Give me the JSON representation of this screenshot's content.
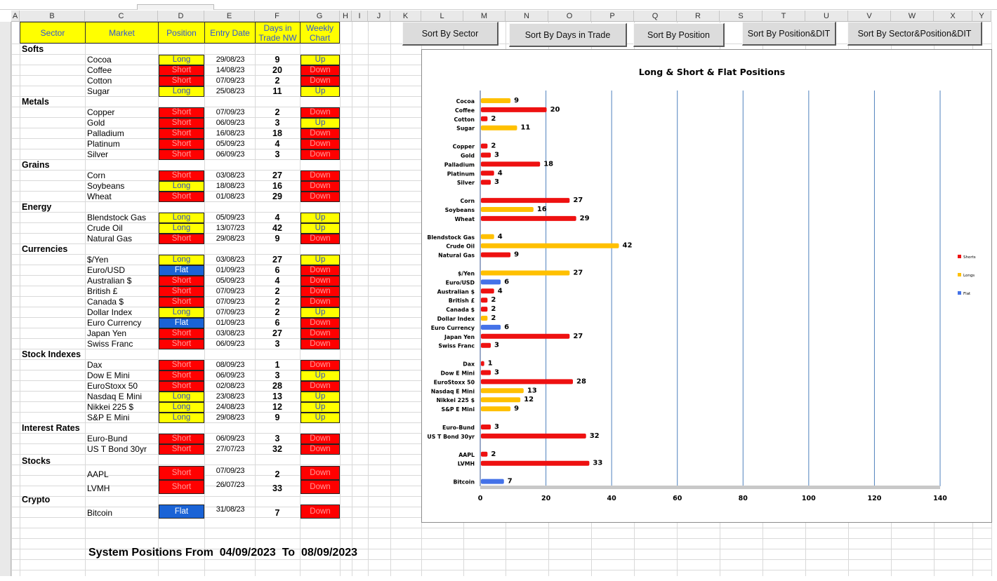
{
  "columns": [
    {
      "letter": "A"
    },
    {
      "letter": "B"
    },
    {
      "letter": "C"
    },
    {
      "letter": "D"
    },
    {
      "letter": "E"
    },
    {
      "letter": "F"
    },
    {
      "letter": "G"
    },
    {
      "letter": "H"
    },
    {
      "letter": "I"
    },
    {
      "letter": "J"
    },
    {
      "letter": "K"
    },
    {
      "letter": "L"
    },
    {
      "letter": "M"
    },
    {
      "letter": "N"
    },
    {
      "letter": "O"
    },
    {
      "letter": "P"
    },
    {
      "letter": "Q"
    },
    {
      "letter": "R"
    },
    {
      "letter": "S"
    },
    {
      "letter": "T"
    },
    {
      "letter": "U"
    },
    {
      "letter": "V"
    },
    {
      "letter": "W"
    },
    {
      "letter": "X"
    },
    {
      "letter": "Y"
    }
  ],
  "headers": {
    "sector": "Sector",
    "market": "Market",
    "position": "Position",
    "entry_date": "Entry Date",
    "days_line1": "Days in",
    "days_line2": "Trade NW",
    "weekly_line1": "Weekly",
    "weekly_line2": "Chart"
  },
  "sectors": [
    {
      "name": "Softs",
      "rows": [
        {
          "market": "Cocoa",
          "position": "Long",
          "date": "29/08/23",
          "days": "9",
          "weekly": "Up"
        },
        {
          "market": "Coffee",
          "position": "Short",
          "date": "14/08/23",
          "days": "20",
          "weekly": "Down"
        },
        {
          "market": "Cotton",
          "position": "Short",
          "date": "07/09/23",
          "days": "2",
          "weekly": "Down"
        },
        {
          "market": "Sugar",
          "position": "Long",
          "date": "25/08/23",
          "days": "11",
          "weekly": "Up"
        }
      ]
    },
    {
      "name": "Metals",
      "rows": [
        {
          "market": "Copper",
          "position": "Short",
          "date": "07/09/23",
          "days": "2",
          "weekly": "Down"
        },
        {
          "market": "Gold",
          "position": "Short",
          "date": "06/09/23",
          "days": "3",
          "weekly": "Up"
        },
        {
          "market": "Palladium",
          "position": "Short",
          "date": "16/08/23",
          "days": "18",
          "weekly": "Down"
        },
        {
          "market": "Platinum",
          "position": "Short",
          "date": "05/09/23",
          "days": "4",
          "weekly": "Down"
        },
        {
          "market": "Silver",
          "position": "Short",
          "date": "06/09/23",
          "days": "3",
          "weekly": "Down"
        }
      ]
    },
    {
      "name": "Grains",
      "rows": [
        {
          "market": "Corn",
          "position": "Short",
          "date": "03/08/23",
          "days": "27",
          "weekly": "Down"
        },
        {
          "market": "Soybeans",
          "position": "Long",
          "date": "18/08/23",
          "days": "16",
          "weekly": "Down"
        },
        {
          "market": "Wheat",
          "position": "Short",
          "date": "01/08/23",
          "days": "29",
          "weekly": "Down"
        }
      ]
    },
    {
      "name": "Energy",
      "rows": [
        {
          "market": "Blendstock Gas",
          "position": "Long",
          "date": "05/09/23",
          "days": "4",
          "weekly": "Up"
        },
        {
          "market": "Crude Oil",
          "position": "Long",
          "date": "13/07/23",
          "days": "42",
          "weekly": "Up"
        },
        {
          "market": "Natural Gas",
          "position": "Short",
          "date": "29/08/23",
          "days": "9",
          "weekly": "Down"
        }
      ]
    },
    {
      "name": "Currencies",
      "rows": [
        {
          "market": "$/Yen",
          "position": "Long",
          "date": "03/08/23",
          "days": "27",
          "weekly": "Up"
        },
        {
          "market": "Euro/USD",
          "position": "Flat",
          "date": "01/09/23",
          "days": "6",
          "weekly": "Down"
        },
        {
          "market": "Australian $",
          "position": "Short",
          "date": "05/09/23",
          "days": "4",
          "weekly": "Down"
        },
        {
          "market": "British £",
          "position": "Short",
          "date": "07/09/23",
          "days": "2",
          "weekly": "Down"
        },
        {
          "market": "Canada $",
          "position": "Short",
          "date": "07/09/23",
          "days": "2",
          "weekly": "Down"
        },
        {
          "market": "Dollar Index",
          "position": "Long",
          "date": "07/09/23",
          "days": "2",
          "weekly": "Up"
        },
        {
          "market": "Euro Currency",
          "position": "Flat",
          "date": "01/09/23",
          "days": "6",
          "weekly": "Down"
        },
        {
          "market": "Japan Yen",
          "position": "Short",
          "date": "03/08/23",
          "days": "27",
          "weekly": "Down"
        },
        {
          "market": "Swiss Franc",
          "position": "Short",
          "date": "06/09/23",
          "days": "3",
          "weekly": "Down"
        }
      ]
    },
    {
      "name": "Stock Indexes",
      "rows": [
        {
          "market": "Dax",
          "position": "Short",
          "date": "08/09/23",
          "days": "1",
          "weekly": "Down"
        },
        {
          "market": "Dow E Mini",
          "position": "Short",
          "date": "06/09/23",
          "days": "3",
          "weekly": "Up"
        },
        {
          "market": "EuroStoxx 50",
          "position": "Short",
          "date": "02/08/23",
          "days": "28",
          "weekly": "Down"
        },
        {
          "market": "Nasdaq E Mini",
          "position": "Long",
          "date": "23/08/23",
          "days": "13",
          "weekly": "Up"
        },
        {
          "market": "Nikkei 225 $",
          "position": "Long",
          "date": "24/08/23",
          "days": "12",
          "weekly": "Up"
        },
        {
          "market": "S&P E Mini",
          "position": "Long",
          "date": "29/08/23",
          "days": "9",
          "weekly": "Up"
        }
      ]
    },
    {
      "name": "Interest Rates",
      "rows": [
        {
          "market": "Euro-Bund",
          "position": "Short",
          "date": "06/09/23",
          "days": "3",
          "weekly": "Down"
        },
        {
          "market": "US T Bond 30yr",
          "position": "Short",
          "date": "27/07/23",
          "days": "32",
          "weekly": "Down"
        }
      ]
    },
    {
      "name": "Stocks",
      "rows": [
        {
          "market": "AAPL",
          "position": "Short",
          "date": "07/09/23",
          "days": "2",
          "weekly": "Down"
        },
        {
          "market": "LVMH",
          "position": "Short",
          "date": "26/07/23",
          "days": "33",
          "weekly": "Down"
        }
      ]
    },
    {
      "name": "Crypto",
      "rows": [
        {
          "market": "Bitcoin",
          "position": "Flat",
          "date": "31/08/23",
          "days": "7",
          "weekly": "Down"
        }
      ]
    }
  ],
  "buttons": {
    "sort_sector": "Sort By Sector",
    "sort_days": "Sort By Days in Trade",
    "sort_position": "Sort By Position",
    "sort_position_dit": "Sort By Position&DIT",
    "sort_sector_position_dit": "Sort By Sector&Position&DIT"
  },
  "footer": {
    "label": "System Positions From",
    "from": "04/09/2023",
    "to_label": "To",
    "to": "08/09/2023"
  },
  "colors": {
    "long": "#ffff00",
    "short": "#ff0000",
    "flat": "#1a63d6",
    "header_text": "#2f57d6",
    "bar_short": "#ee1111",
    "bar_long": "#ffc000",
    "bar_flat": "#4472e8"
  },
  "chart_data": {
    "type": "bar",
    "orientation": "horizontal",
    "title": "Long & Short & Flat Positions",
    "xlim": [
      0,
      140
    ],
    "xticks": [
      0,
      20,
      40,
      60,
      80,
      100,
      120,
      140
    ],
    "grid": "vertical",
    "legend_position": "right",
    "legend": [
      {
        "name": "Shorts",
        "color": "#ee1111"
      },
      {
        "name": "Longs",
        "color": "#ffc000"
      },
      {
        "name": "Flat",
        "color": "#4472e8"
      }
    ],
    "groups": [
      [
        {
          "label": "Cocoa",
          "value": 9,
          "series": "Longs"
        },
        {
          "label": "Coffee",
          "value": 20,
          "series": "Shorts"
        },
        {
          "label": "Cotton",
          "value": 2,
          "series": "Shorts"
        },
        {
          "label": "Sugar",
          "value": 11,
          "series": "Longs"
        }
      ],
      [
        {
          "label": "Copper",
          "value": 2,
          "series": "Shorts"
        },
        {
          "label": "Gold",
          "value": 3,
          "series": "Shorts"
        },
        {
          "label": "Palladium",
          "value": 18,
          "series": "Shorts"
        },
        {
          "label": "Platinum",
          "value": 4,
          "series": "Shorts"
        },
        {
          "label": "Silver",
          "value": 3,
          "series": "Shorts"
        }
      ],
      [
        {
          "label": "Corn",
          "value": 27,
          "series": "Shorts"
        },
        {
          "label": "Soybeans",
          "value": 16,
          "series": "Longs"
        },
        {
          "label": "Wheat",
          "value": 29,
          "series": "Shorts"
        }
      ],
      [
        {
          "label": "Blendstock Gas",
          "value": 4,
          "series": "Longs"
        },
        {
          "label": "Crude Oil",
          "value": 42,
          "series": "Longs"
        },
        {
          "label": "Natural Gas",
          "value": 9,
          "series": "Shorts"
        }
      ],
      [
        {
          "label": "$/Yen",
          "value": 27,
          "series": "Longs"
        },
        {
          "label": "Euro/USD",
          "value": 6,
          "series": "Flat"
        },
        {
          "label": "Australian $",
          "value": 4,
          "series": "Shorts"
        },
        {
          "label": "British £",
          "value": 2,
          "series": "Shorts"
        },
        {
          "label": "Canada $",
          "value": 2,
          "series": "Shorts"
        },
        {
          "label": "Dollar Index",
          "value": 2,
          "series": "Longs"
        },
        {
          "label": "Euro Currency",
          "value": 6,
          "series": "Flat"
        },
        {
          "label": "Japan Yen",
          "value": 27,
          "series": "Shorts"
        },
        {
          "label": "Swiss Franc",
          "value": 3,
          "series": "Shorts"
        }
      ],
      [
        {
          "label": "Dax",
          "value": 1,
          "series": "Shorts"
        },
        {
          "label": "Dow E Mini",
          "value": 3,
          "series": "Shorts"
        },
        {
          "label": "EuroStoxx 50",
          "value": 28,
          "series": "Shorts"
        },
        {
          "label": "Nasdaq E Mini",
          "value": 13,
          "series": "Longs"
        },
        {
          "label": "Nikkei 225 $",
          "value": 12,
          "series": "Longs"
        },
        {
          "label": "S&P E Mini",
          "value": 9,
          "series": "Longs"
        }
      ],
      [
        {
          "label": "Euro-Bund",
          "value": 3,
          "series": "Shorts"
        },
        {
          "label": "US T Bond 30yr",
          "value": 32,
          "series": "Shorts"
        }
      ],
      [
        {
          "label": "AAPL",
          "value": 2,
          "series": "Shorts"
        },
        {
          "label": "LVMH",
          "value": 33,
          "series": "Shorts"
        }
      ],
      [
        {
          "label": "Bitcoin",
          "value": 7,
          "series": "Flat"
        }
      ]
    ]
  }
}
